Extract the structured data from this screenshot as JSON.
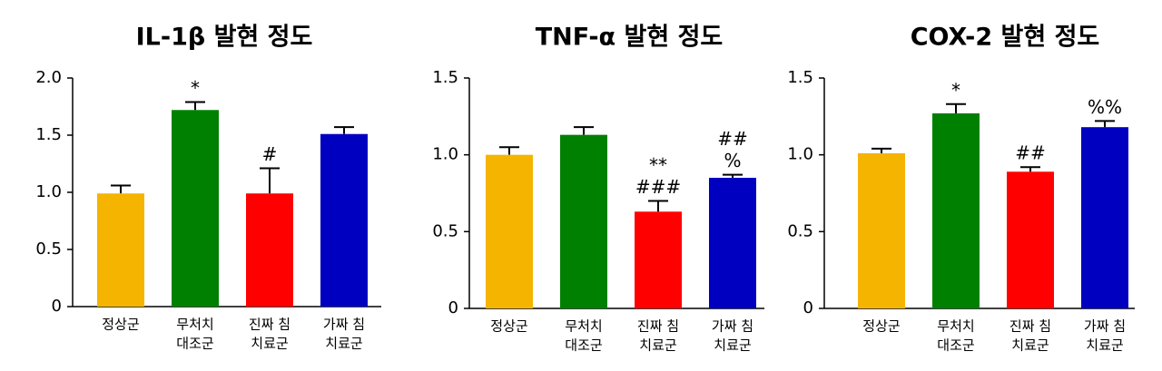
{
  "chart_data": [
    {
      "type": "bar",
      "title": "IL-1β 발현 정도",
      "categories": [
        [
          "정상군"
        ],
        [
          "무처치",
          "대조군"
        ],
        [
          "진짜 침",
          "치료군"
        ],
        [
          "가짜 침",
          "치료군"
        ]
      ],
      "values": [
        0.99,
        1.72,
        0.99,
        1.51
      ],
      "errors": [
        0.07,
        0.07,
        0.22,
        0.06
      ],
      "annotations": [
        null,
        [
          "*"
        ],
        [
          "#"
        ],
        null
      ],
      "colors": [
        "#f5b400",
        "#008000",
        "#ff0000",
        "#0000c0"
      ],
      "ylim": [
        0,
        2
      ],
      "yticks": [
        0,
        {
          "value": 0.5,
          "label": "0.5"
        },
        {
          "value": 1,
          "label": "1.0"
        },
        {
          "value": 1.5,
          "label": "1.5"
        },
        {
          "value": 2,
          "label": "2.0"
        }
      ]
    },
    {
      "type": "bar",
      "title": "TNF-α 발현 정도",
      "categories": [
        [
          "정상군"
        ],
        [
          "무처치",
          "대조군"
        ],
        [
          "진짜 침",
          "치료군"
        ],
        [
          "가짜 침",
          "치료군"
        ]
      ],
      "values": [
        1.0,
        1.13,
        0.63,
        0.85
      ],
      "errors": [
        0.05,
        0.05,
        0.07,
        0.02
      ],
      "annotations": [
        null,
        null,
        [
          "**",
          "###"
        ],
        [
          "##",
          "%"
        ]
      ],
      "colors": [
        "#f5b400",
        "#008000",
        "#ff0000",
        "#0000c0"
      ],
      "ylim": [
        0,
        1.5
      ],
      "yticks": [
        0,
        {
          "value": 0.5,
          "label": "0.5"
        },
        {
          "value": 1,
          "label": "1.0"
        },
        {
          "value": 1.5,
          "label": "1.5"
        }
      ]
    },
    {
      "type": "bar",
      "title": "COX-2 발현 정도",
      "categories": [
        [
          "정상군"
        ],
        [
          "무처치",
          "대조군"
        ],
        [
          "진짜 침",
          "치료군"
        ],
        [
          "가짜 침",
          "치료군"
        ]
      ],
      "values": [
        1.01,
        1.27,
        0.89,
        1.18
      ],
      "errors": [
        0.03,
        0.06,
        0.03,
        0.04
      ],
      "annotations": [
        null,
        [
          "*"
        ],
        [
          "##"
        ],
        [
          "%%"
        ]
      ],
      "colors": [
        "#f5b400",
        "#008000",
        "#ff0000",
        "#0000c0"
      ],
      "ylim": [
        0,
        1.5
      ],
      "yticks": [
        0,
        {
          "value": 0.5,
          "label": "0.5"
        },
        {
          "value": 1,
          "label": "1.0"
        },
        {
          "value": 1.5,
          "label": "1.5"
        }
      ]
    }
  ]
}
